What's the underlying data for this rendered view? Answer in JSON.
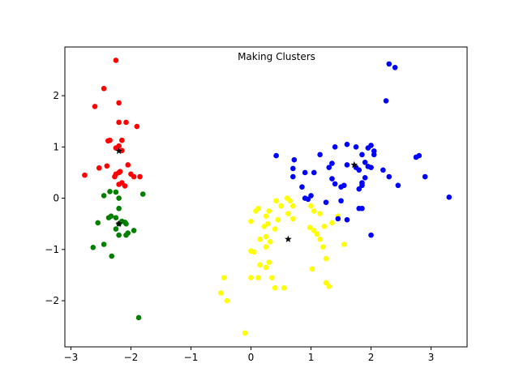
{
  "chart_data": {
    "type": "scatter",
    "title": "Making Clusters",
    "xlabel": "",
    "ylabel": "",
    "xlim": [
      -3.1,
      3.6
    ],
    "ylim": [
      -2.9,
      2.95
    ],
    "xticks": [
      -3,
      -2,
      -1,
      0,
      1,
      2,
      3
    ],
    "yticks": [
      -2,
      -1,
      0,
      1,
      2
    ],
    "xtick_labels": [
      "−3",
      "−2",
      "−1",
      "0",
      "1",
      "2",
      "3"
    ],
    "ytick_labels": [
      "−2",
      "−1",
      "0",
      "1",
      "2"
    ],
    "grid": false,
    "legend": "none",
    "series": [
      {
        "color": "#ff0000",
        "points": [
          [
            -2.25,
            2.69
          ],
          [
            -2.45,
            2.14
          ],
          [
            -2.6,
            1.79
          ],
          [
            -2.2,
            1.86
          ],
          [
            -2.2,
            1.48
          ],
          [
            -2.08,
            1.48
          ],
          [
            -1.9,
            1.4
          ],
          [
            -2.38,
            1.12
          ],
          [
            -2.35,
            1.13
          ],
          [
            -2.15,
            1.13
          ],
          [
            -2.2,
            1.02
          ],
          [
            -2.25,
            0.98
          ],
          [
            -2.15,
            0.93
          ],
          [
            -2.77,
            0.45
          ],
          [
            -2.53,
            0.59
          ],
          [
            -2.4,
            0.63
          ],
          [
            -2.25,
            0.47
          ],
          [
            -2.27,
            0.42
          ],
          [
            -2.2,
            0.5
          ],
          [
            -2.18,
            0.52
          ],
          [
            -2.05,
            0.65
          ],
          [
            -2.0,
            0.47
          ],
          [
            -1.95,
            0.42
          ],
          [
            -1.85,
            0.42
          ],
          [
            -2.2,
            0.27
          ],
          [
            -2.15,
            0.3
          ],
          [
            -2.1,
            0.24
          ]
        ]
      },
      {
        "color": "#008000",
        "points": [
          [
            -2.45,
            0.05
          ],
          [
            -2.35,
            0.13
          ],
          [
            -2.25,
            0.12
          ],
          [
            -2.2,
            0.0
          ],
          [
            -1.8,
            0.08
          ],
          [
            -2.2,
            -0.2
          ],
          [
            -2.55,
            -0.48
          ],
          [
            -2.37,
            -0.38
          ],
          [
            -2.33,
            -0.35
          ],
          [
            -2.25,
            -0.38
          ],
          [
            -2.2,
            -0.5
          ],
          [
            -2.15,
            -0.45
          ],
          [
            -2.1,
            -0.47
          ],
          [
            -2.08,
            -0.5
          ],
          [
            -2.25,
            -0.6
          ],
          [
            -2.05,
            -0.68
          ],
          [
            -1.95,
            -0.63
          ],
          [
            -2.2,
            -0.72
          ],
          [
            -2.08,
            -0.72
          ],
          [
            -2.63,
            -0.96
          ],
          [
            -2.45,
            -0.9
          ],
          [
            -2.32,
            -1.13
          ],
          [
            -1.87,
            -2.33
          ]
        ]
      },
      {
        "color": "#ffff00",
        "points": [
          [
            -0.1,
            -2.63
          ],
          [
            -0.4,
            -2.0
          ],
          [
            -0.5,
            -1.85
          ],
          [
            -0.45,
            -1.55
          ],
          [
            0.0,
            -1.55
          ],
          [
            0.12,
            -1.55
          ],
          [
            0.35,
            -1.55
          ],
          [
            0.4,
            -1.75
          ],
          [
            0.55,
            -1.75
          ],
          [
            1.25,
            -1.65
          ],
          [
            1.3,
            -1.72
          ],
          [
            0.15,
            -1.3
          ],
          [
            0.25,
            -1.35
          ],
          [
            0.3,
            -1.25
          ],
          [
            0.0,
            -1.03
          ],
          [
            0.05,
            -1.05
          ],
          [
            0.25,
            -0.95
          ],
          [
            0.32,
            -0.85
          ],
          [
            0.15,
            -0.8
          ],
          [
            0.25,
            -0.75
          ],
          [
            0.4,
            -0.6
          ],
          [
            0.22,
            -0.55
          ],
          [
            0.28,
            -0.5
          ],
          [
            0.25,
            -0.35
          ],
          [
            0.3,
            -0.25
          ],
          [
            0.12,
            -0.2
          ],
          [
            0.08,
            -0.25
          ],
          [
            0.0,
            -0.45
          ],
          [
            0.45,
            -0.42
          ],
          [
            0.5,
            -0.15
          ],
          [
            0.42,
            -0.05
          ],
          [
            0.6,
            0.0
          ],
          [
            0.65,
            -0.05
          ],
          [
            0.7,
            -0.15
          ],
          [
            0.62,
            -0.3
          ],
          [
            0.7,
            -0.4
          ],
          [
            0.98,
            -0.57
          ],
          [
            1.05,
            -0.63
          ],
          [
            1.1,
            -0.7
          ],
          [
            1.15,
            -0.8
          ],
          [
            1.2,
            -0.95
          ],
          [
            1.25,
            -1.18
          ],
          [
            1.02,
            -1.38
          ],
          [
            1.22,
            -0.55
          ],
          [
            1.35,
            -0.48
          ],
          [
            1.45,
            -0.35
          ],
          [
            1.55,
            -0.9
          ],
          [
            1.05,
            -0.25
          ],
          [
            1.15,
            -0.3
          ],
          [
            1.0,
            -0.15
          ]
        ]
      },
      {
        "color": "#0000ff",
        "points": [
          [
            2.3,
            2.62
          ],
          [
            2.4,
            2.55
          ],
          [
            2.25,
            1.9
          ],
          [
            1.6,
            1.05
          ],
          [
            1.4,
            1.0
          ],
          [
            1.75,
            1.0
          ],
          [
            1.95,
            0.98
          ],
          [
            2.0,
            1.03
          ],
          [
            2.05,
            0.92
          ],
          [
            2.05,
            0.85
          ],
          [
            2.2,
            0.55
          ],
          [
            2.3,
            0.42
          ],
          [
            2.45,
            0.25
          ],
          [
            2.75,
            0.8
          ],
          [
            2.8,
            0.83
          ],
          [
            2.9,
            0.42
          ],
          [
            3.3,
            0.02
          ],
          [
            0.42,
            0.83
          ],
          [
            0.72,
            0.75
          ],
          [
            0.7,
            0.58
          ],
          [
            0.9,
            0.5
          ],
          [
            1.05,
            0.5
          ],
          [
            0.7,
            0.42
          ],
          [
            1.15,
            0.85
          ],
          [
            1.3,
            0.6
          ],
          [
            1.35,
            0.68
          ],
          [
            1.6,
            0.65
          ],
          [
            1.85,
            0.85
          ],
          [
            1.9,
            0.7
          ],
          [
            1.95,
            0.62
          ],
          [
            2.0,
            0.6
          ],
          [
            1.8,
            0.55
          ],
          [
            1.75,
            0.6
          ],
          [
            1.9,
            0.4
          ],
          [
            1.85,
            0.3
          ],
          [
            1.85,
            0.25
          ],
          [
            1.8,
            0.18
          ],
          [
            1.35,
            0.38
          ],
          [
            1.4,
            0.28
          ],
          [
            1.5,
            0.22
          ],
          [
            1.55,
            0.25
          ],
          [
            0.85,
            0.22
          ],
          [
            0.9,
            0.0
          ],
          [
            0.95,
            -0.02
          ],
          [
            1.0,
            0.05
          ],
          [
            1.25,
            -0.08
          ],
          [
            1.5,
            -0.05
          ],
          [
            1.8,
            -0.2
          ],
          [
            1.85,
            -0.2
          ],
          [
            1.45,
            -0.4
          ],
          [
            1.6,
            -0.42
          ],
          [
            2.0,
            -0.72
          ]
        ]
      }
    ],
    "centroids": {
      "color": "#000000",
      "marker": "star",
      "points": [
        [
          -2.2,
          0.92
        ],
        [
          -2.2,
          -0.5
        ],
        [
          0.62,
          -0.8
        ],
        [
          1.72,
          0.65
        ]
      ]
    }
  }
}
